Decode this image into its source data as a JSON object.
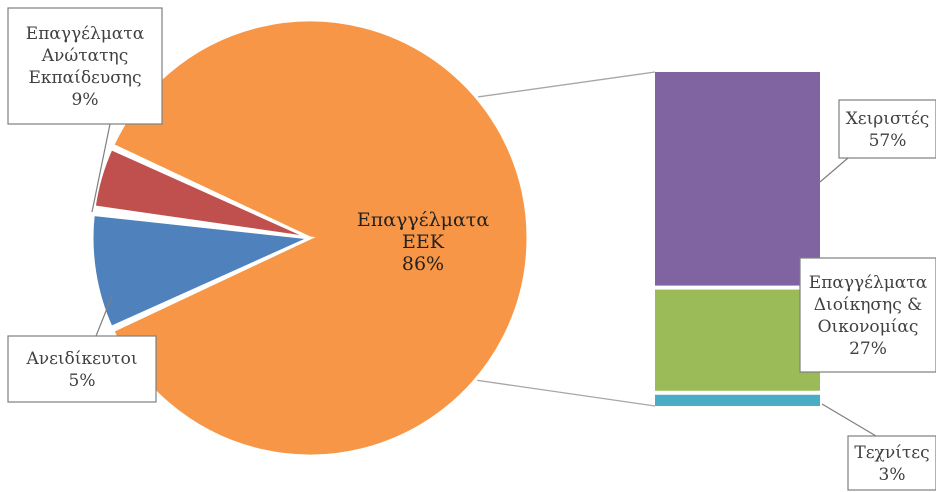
{
  "chart_data": {
    "type": "bar-of-pie",
    "pie": {
      "slices": [
        {
          "label_lines": [
            "Επαγγέλματα",
            "ΕΕΚ"
          ],
          "percent_text": "86%",
          "value": 86,
          "color": "#F79646"
        },
        {
          "label_lines": [
            "Επαγγέλματα",
            "Ανώτατης",
            "Εκπαίδευσης"
          ],
          "percent_text": "9%",
          "value": 9,
          "color": "#4F81BD"
        },
        {
          "label_lines": [
            "Ανειδίκευτοι"
          ],
          "percent_text": "5%",
          "value": 5,
          "color": "#C0504D"
        }
      ]
    },
    "bar": {
      "source_slice": "Επαγγέλματα ΕΕΚ",
      "segments": [
        {
          "label_lines": [
            "Χειριστές"
          ],
          "percent_text": "57%",
          "value": 57,
          "color": "#8064A2"
        },
        {
          "label_lines": [
            "Επαγγέλματα",
            "Διοίκησης &",
            "Οικονομίας"
          ],
          "percent_text": "27%",
          "value": 27,
          "color": "#9BBB59"
        },
        {
          "label_lines": [
            "Τεχνίτες"
          ],
          "percent_text": "3%",
          "value": 3,
          "color": "#4BACC6"
        }
      ]
    }
  }
}
